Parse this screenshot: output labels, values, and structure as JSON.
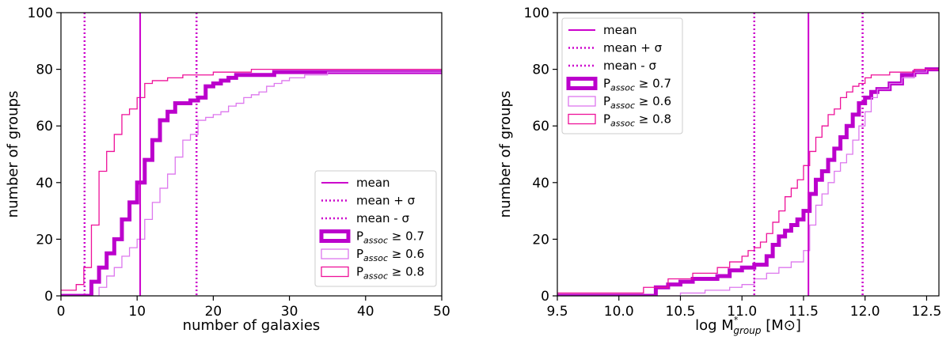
{
  "colors": {
    "thick": "#bb00cc",
    "light": "#dd77ee",
    "bright": "#ee1199",
    "mean": "#cc00cc"
  },
  "chart_data": [
    {
      "type": "line",
      "subtype": "cumulative-step-histogram",
      "xlabel": "number of galaxies",
      "ylabel": "number of groups",
      "xlim": [
        0,
        50
      ],
      "ylim": [
        0,
        100
      ],
      "xticks": [
        0,
        10,
        20,
        30,
        40,
        50
      ],
      "yticks": [
        0,
        20,
        40,
        60,
        80,
        100
      ],
      "legend_position": "lower-right",
      "legend": [
        {
          "label": "mean",
          "style": "solid-line"
        },
        {
          "label": "mean + σ",
          "style": "dotted-line"
        },
        {
          "label": "mean - σ",
          "style": "dotted-line"
        },
        {
          "label": "P",
          "sub": "assoc",
          "rest": " ≥  0.7",
          "style": "thick-box"
        },
        {
          "label": "P",
          "sub": "assoc",
          "rest": " ≥  0.6",
          "style": "light-box"
        },
        {
          "label": "P",
          "sub": "assoc",
          "rest": " ≥  0.8",
          "style": "bright-box"
        }
      ],
      "vlines": [
        {
          "name": "mean",
          "x": 10.4,
          "style": "solid"
        },
        {
          "name": "mean + sigma",
          "x": 17.8,
          "style": "dotted"
        },
        {
          "name": "mean - sigma",
          "x": 3.1,
          "style": "dotted"
        }
      ],
      "series": [
        {
          "name": "P_assoc >= 0.7",
          "style": "thick",
          "x": [
            0,
            3,
            4,
            5,
            6,
            7,
            8,
            9,
            10,
            11,
            12,
            13,
            14,
            15,
            16,
            17,
            18,
            19,
            20,
            21,
            22,
            23,
            24,
            26,
            28,
            30,
            35,
            50
          ],
          "y": [
            0,
            0,
            5,
            10,
            15,
            20,
            27,
            33,
            40,
            48,
            55,
            62,
            65,
            68,
            68,
            69,
            70,
            74,
            75,
            76,
            77,
            78,
            78,
            78,
            79,
            79,
            79,
            79
          ]
        },
        {
          "name": "P_assoc >= 0.6",
          "style": "light",
          "x": [
            0,
            4,
            5,
            6,
            7,
            8,
            9,
            10,
            11,
            12,
            13,
            14,
            15,
            16,
            17,
            18,
            19,
            20,
            21,
            22,
            23,
            24,
            25,
            26,
            27,
            28,
            29,
            30,
            32,
            35,
            50
          ],
          "y": [
            0,
            0,
            3,
            7,
            10,
            14,
            17,
            20,
            27,
            33,
            38,
            43,
            49,
            55,
            57,
            62,
            63,
            64,
            65,
            67,
            68,
            70,
            71,
            72,
            74,
            75,
            76,
            77,
            78,
            79,
            79
          ]
        },
        {
          "name": "P_assoc >= 0.8",
          "style": "bright",
          "x": [
            0,
            2,
            3,
            4,
            5,
            6,
            7,
            8,
            9,
            10,
            11,
            12,
            13,
            14,
            15,
            16,
            18,
            20,
            22,
            25,
            30,
            50
          ],
          "y": [
            2,
            4,
            10,
            25,
            44,
            51,
            57,
            64,
            66,
            70,
            75,
            76,
            76,
            77,
            77,
            78,
            78,
            79,
            79,
            80,
            80,
            80
          ]
        }
      ]
    },
    {
      "type": "line",
      "subtype": "cumulative-step-histogram",
      "xlabel": "log M",
      "xlabel_sup": "*",
      "xlabel_sub": "group",
      "xlabel_unit": " [M⊙]",
      "ylabel": "number of groups",
      "xlim": [
        9.5,
        12.6
      ],
      "ylim": [
        0,
        100
      ],
      "xticks": [
        9.5,
        10.0,
        10.5,
        11.0,
        11.5,
        12.0,
        12.5
      ],
      "xtick_labels": [
        "9.5",
        "10.0",
        "10.5",
        "11.0",
        "11.5",
        "12.0",
        "12.5"
      ],
      "yticks": [
        0,
        20,
        40,
        60,
        80,
        100
      ],
      "legend_position": "top-left",
      "legend": [
        {
          "label": "mean",
          "style": "solid-line"
        },
        {
          "label": "mean + σ",
          "style": "dotted-line"
        },
        {
          "label": "mean - σ",
          "style": "dotted-line"
        },
        {
          "label": "P",
          "sub": "assoc",
          "rest": " ≥  0.7",
          "style": "thick-box"
        },
        {
          "label": "P",
          "sub": "assoc",
          "rest": " ≥  0.6",
          "style": "light-box"
        },
        {
          "label": "P",
          "sub": "assoc",
          "rest": " ≥  0.8",
          "style": "bright-box"
        }
      ],
      "vlines": [
        {
          "name": "mean",
          "x": 11.54,
          "style": "solid"
        },
        {
          "name": "mean - sigma",
          "x": 11.1,
          "style": "dotted"
        },
        {
          "name": "mean + sigma",
          "x": 11.98,
          "style": "dotted"
        }
      ],
      "series": [
        {
          "name": "P_assoc >= 0.7",
          "style": "thick",
          "x": [
            9.5,
            10.2,
            10.3,
            10.4,
            10.5,
            10.6,
            10.7,
            10.8,
            10.9,
            11.0,
            11.1,
            11.2,
            11.25,
            11.3,
            11.35,
            11.4,
            11.45,
            11.5,
            11.55,
            11.6,
            11.65,
            11.7,
            11.75,
            11.8,
            11.85,
            11.9,
            11.95,
            12.0,
            12.05,
            12.1,
            12.2,
            12.3,
            12.4,
            12.5,
            12.6
          ],
          "y": [
            0,
            0,
            3,
            4,
            5,
            6,
            6,
            7,
            9,
            10,
            11,
            14,
            18,
            21,
            23,
            25,
            27,
            30,
            36,
            41,
            44,
            48,
            52,
            56,
            60,
            64,
            68,
            70,
            72,
            73,
            75,
            78,
            79,
            80,
            80
          ]
        },
        {
          "name": "P_assoc >= 0.6",
          "style": "light",
          "x": [
            9.5,
            10.3,
            10.5,
            10.7,
            10.9,
            11.0,
            11.1,
            11.2,
            11.3,
            11.4,
            11.5,
            11.55,
            11.6,
            11.65,
            11.7,
            11.75,
            11.8,
            11.85,
            11.9,
            11.95,
            12.0,
            12.05,
            12.1,
            12.2,
            12.3,
            12.4,
            12.5,
            12.6
          ],
          "y": [
            0,
            0,
            1,
            2,
            3,
            4,
            6,
            8,
            10,
            12,
            16,
            25,
            32,
            36,
            40,
            44,
            47,
            50,
            55,
            60,
            65,
            70,
            73,
            75,
            77,
            79,
            80,
            80
          ]
        },
        {
          "name": "P_assoc >= 0.8",
          "style": "bright",
          "x": [
            9.5,
            10.0,
            10.2,
            10.4,
            10.6,
            10.8,
            10.9,
            11.0,
            11.05,
            11.1,
            11.15,
            11.2,
            11.25,
            11.3,
            11.35,
            11.4,
            11.45,
            11.5,
            11.55,
            11.6,
            11.65,
            11.7,
            11.75,
            11.8,
            11.85,
            11.9,
            11.95,
            12.0,
            12.05,
            12.1,
            12.2,
            12.3,
            12.4,
            12.5,
            12.6
          ],
          "y": [
            1,
            1,
            3,
            6,
            8,
            10,
            12,
            14,
            16,
            17,
            19,
            22,
            26,
            30,
            35,
            38,
            41,
            46,
            51,
            56,
            60,
            64,
            66,
            70,
            72,
            74,
            75,
            77,
            78,
            78,
            79,
            79,
            80,
            80,
            80
          ]
        }
      ]
    }
  ]
}
